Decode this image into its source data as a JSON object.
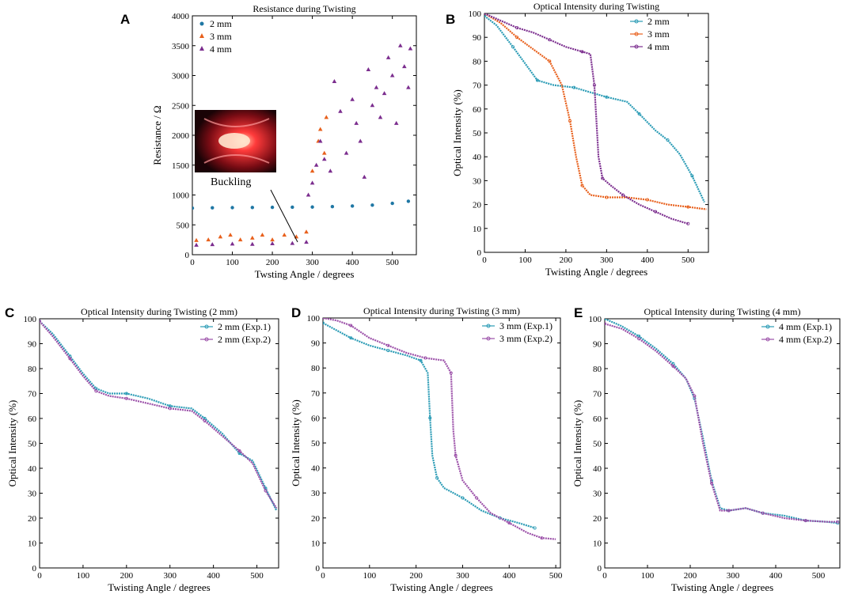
{
  "chart_data": [
    {
      "panel": "A",
      "type": "scatter",
      "title": "Resistance during Twisting",
      "xlabel": "Twsting Angle / degrees",
      "ylabel": "Resistance / Ω",
      "xlim": [
        0,
        560
      ],
      "ylim": [
        0,
        4000
      ],
      "xticks": [
        0,
        100,
        200,
        300,
        400,
        500
      ],
      "yticks": [
        0,
        500,
        1000,
        1500,
        2000,
        2500,
        3000,
        3500,
        4000
      ],
      "legend_position": "top-left",
      "annotation": "Buckling",
      "inset_image": "red-glowing-fiber-photo",
      "series": [
        {
          "name": "2 mm",
          "marker": "circle",
          "color": "#1f77a4",
          "points": [
            [
              0,
              780
            ],
            [
              50,
              785
            ],
            [
              100,
              788
            ],
            [
              150,
              790
            ],
            [
              200,
              793
            ],
            [
              250,
              795
            ],
            [
              300,
              798
            ],
            [
              350,
              805
            ],
            [
              400,
              815
            ],
            [
              450,
              830
            ],
            [
              500,
              860
            ],
            [
              540,
              895
            ]
          ]
        },
        {
          "name": "3 mm",
          "marker": "triangle",
          "color": "#e8601c",
          "points": [
            [
              10,
              240
            ],
            [
              40,
              250
            ],
            [
              70,
              300
            ],
            [
              95,
              330
            ],
            [
              120,
              250
            ],
            [
              150,
              280
            ],
            [
              175,
              330
            ],
            [
              200,
              250
            ],
            [
              230,
              330
            ],
            [
              260,
              300
            ],
            [
              285,
              380
            ],
            [
              300,
              1400
            ],
            [
              315,
              1900
            ],
            [
              320,
              2100
            ],
            [
              330,
              1700
            ],
            [
              335,
              2300
            ]
          ]
        },
        {
          "name": "4 mm",
          "marker": "triangle",
          "color": "#7b2d8e",
          "points": [
            [
              10,
              160
            ],
            [
              50,
              170
            ],
            [
              100,
              180
            ],
            [
              150,
              175
            ],
            [
              200,
              185
            ],
            [
              250,
              190
            ],
            [
              285,
              210
            ],
            [
              290,
              1000
            ],
            [
              300,
              1200
            ],
            [
              310,
              1500
            ],
            [
              320,
              1900
            ],
            [
              330,
              1600
            ],
            [
              345,
              1400
            ],
            [
              355,
              2900
            ],
            [
              370,
              2400
            ],
            [
              385,
              1700
            ],
            [
              400,
              2600
            ],
            [
              410,
              2200
            ],
            [
              420,
              1900
            ],
            [
              430,
              1300
            ],
            [
              440,
              3100
            ],
            [
              450,
              2500
            ],
            [
              460,
              2800
            ],
            [
              470,
              2300
            ],
            [
              480,
              2700
            ],
            [
              490,
              3300
            ],
            [
              500,
              3000
            ],
            [
              510,
              2200
            ],
            [
              520,
              3500
            ],
            [
              530,
              3150
            ],
            [
              540,
              2800
            ],
            [
              545,
              3450
            ]
          ]
        }
      ]
    },
    {
      "panel": "B",
      "type": "line",
      "title": "Optical Intensity during Twisting",
      "xlabel": "Twisting Angle / degrees",
      "ylabel": "Optical Intensity (%)",
      "xlim": [
        0,
        550
      ],
      "ylim": [
        0,
        100
      ],
      "xticks": [
        0,
        100,
        200,
        300,
        400,
        500
      ],
      "yticks": [
        0,
        10,
        20,
        30,
        40,
        50,
        60,
        70,
        80,
        90,
        100
      ],
      "legend_position": "top-right",
      "series": [
        {
          "name": "2 mm",
          "color": "#2a9bb5",
          "points": [
            [
              0,
              99
            ],
            [
              30,
              95
            ],
            [
              70,
              86
            ],
            [
              100,
              79
            ],
            [
              130,
              72
            ],
            [
              170,
              70
            ],
            [
              220,
              69
            ],
            [
              260,
              67
            ],
            [
              300,
              65
            ],
            [
              350,
              63
            ],
            [
              380,
              58
            ],
            [
              420,
              51
            ],
            [
              450,
              47
            ],
            [
              480,
              41
            ],
            [
              510,
              32
            ],
            [
              540,
              21
            ]
          ]
        },
        {
          "name": "3 mm",
          "color": "#e8601c",
          "points": [
            [
              0,
              100
            ],
            [
              40,
              96
            ],
            [
              80,
              90
            ],
            [
              120,
              85
            ],
            [
              160,
              80
            ],
            [
              190,
              70
            ],
            [
              210,
              55
            ],
            [
              225,
              40
            ],
            [
              240,
              28
            ],
            [
              260,
              24
            ],
            [
              300,
              23
            ],
            [
              350,
              23
            ],
            [
              400,
              22
            ],
            [
              450,
              20
            ],
            [
              500,
              19
            ],
            [
              545,
              18
            ]
          ]
        },
        {
          "name": "4 mm",
          "color": "#7b2d8e",
          "points": [
            [
              0,
              100
            ],
            [
              40,
              97
            ],
            [
              80,
              94
            ],
            [
              120,
              92
            ],
            [
              160,
              89
            ],
            [
              200,
              86
            ],
            [
              240,
              84
            ],
            [
              260,
              83
            ],
            [
              270,
              70
            ],
            [
              280,
              40
            ],
            [
              290,
              31
            ],
            [
              310,
              28
            ],
            [
              340,
              24
            ],
            [
              380,
              20
            ],
            [
              420,
              17
            ],
            [
              460,
              14
            ],
            [
              500,
              12
            ]
          ]
        }
      ]
    },
    {
      "panel": "C",
      "type": "line",
      "title": "Optical Intensity during Twisting (2 mm)",
      "xlabel": "Twisting Angle / degrees",
      "ylabel": "Optical Intensity (%)",
      "xlim": [
        0,
        550
      ],
      "ylim": [
        0,
        100
      ],
      "xticks": [
        0,
        100,
        200,
        300,
        400,
        500
      ],
      "yticks": [
        0,
        10,
        20,
        30,
        40,
        50,
        60,
        70,
        80,
        90,
        100
      ],
      "legend_position": "top-right",
      "series": [
        {
          "name": "2 mm (Exp.1)",
          "color": "#2a9bb5",
          "points": [
            [
              0,
              99
            ],
            [
              30,
              94
            ],
            [
              70,
              85
            ],
            [
              100,
              78
            ],
            [
              130,
              72
            ],
            [
              160,
              70
            ],
            [
              200,
              70
            ],
            [
              250,
              68
            ],
            [
              300,
              65
            ],
            [
              350,
              64
            ],
            [
              380,
              60
            ],
            [
              420,
              54
            ],
            [
              460,
              46
            ],
            [
              490,
              43
            ],
            [
              520,
              32
            ],
            [
              545,
              23
            ]
          ]
        },
        {
          "name": "2 mm (Exp.2)",
          "color": "#9b4fa8",
          "points": [
            [
              0,
              99
            ],
            [
              30,
              93
            ],
            [
              70,
              84
            ],
            [
              100,
              77
            ],
            [
              130,
              71
            ],
            [
              160,
              69
            ],
            [
              200,
              68
            ],
            [
              250,
              66
            ],
            [
              300,
              64
            ],
            [
              350,
              63
            ],
            [
              380,
              59
            ],
            [
              420,
              53
            ],
            [
              460,
              47
            ],
            [
              490,
              42
            ],
            [
              520,
              31
            ],
            [
              545,
              24
            ]
          ]
        }
      ]
    },
    {
      "panel": "D",
      "type": "line",
      "title": "Optical Intensity during Twisting (3 mm)",
      "xlabel": "Twisting Angle / degrees",
      "ylabel": "Optical Intensity (%)",
      "xlim": [
        0,
        510
      ],
      "ylim": [
        0,
        100
      ],
      "xticks": [
        0,
        100,
        200,
        300,
        400,
        500
      ],
      "yticks": [
        0,
        10,
        20,
        30,
        40,
        50,
        60,
        70,
        80,
        90,
        100
      ],
      "legend_position": "top-right",
      "series": [
        {
          "name": "3 mm (Exp.1)",
          "color": "#2a9bb5",
          "points": [
            [
              0,
              98
            ],
            [
              30,
              95
            ],
            [
              60,
              92
            ],
            [
              100,
              89
            ],
            [
              140,
              87
            ],
            [
              180,
              85
            ],
            [
              210,
              83
            ],
            [
              225,
              78
            ],
            [
              230,
              60
            ],
            [
              235,
              45
            ],
            [
              245,
              36
            ],
            [
              260,
              32
            ],
            [
              300,
              28
            ],
            [
              340,
              23
            ],
            [
              380,
              20
            ],
            [
              420,
              18
            ],
            [
              455,
              16
            ]
          ]
        },
        {
          "name": "3 mm (Exp.2)",
          "color": "#9b4fa8",
          "points": [
            [
              0,
              100
            ],
            [
              30,
              99
            ],
            [
              60,
              97
            ],
            [
              100,
              92
            ],
            [
              140,
              89
            ],
            [
              180,
              86
            ],
            [
              220,
              84
            ],
            [
              260,
              83
            ],
            [
              275,
              78
            ],
            [
              280,
              55
            ],
            [
              285,
              45
            ],
            [
              300,
              35
            ],
            [
              330,
              28
            ],
            [
              360,
              22
            ],
            [
              400,
              18
            ],
            [
              440,
              14
            ],
            [
              470,
              12
            ],
            [
              500,
              11.5
            ]
          ]
        }
      ]
    },
    {
      "panel": "E",
      "type": "line",
      "title": "Optical Intensity during Twisting (4 mm)",
      "xlabel": "Twisting Angle / degrees",
      "ylabel": "Optical Intensity (%)",
      "xlim": [
        0,
        550
      ],
      "ylim": [
        0,
        100
      ],
      "xticks": [
        0,
        100,
        200,
        300,
        400,
        500
      ],
      "yticks": [
        0,
        10,
        20,
        30,
        40,
        50,
        60,
        70,
        80,
        90,
        100
      ],
      "legend_position": "top-right",
      "series": [
        {
          "name": "4 mm (Exp.1)",
          "color": "#2a9bb5",
          "points": [
            [
              0,
              100
            ],
            [
              40,
              97
            ],
            [
              80,
              93
            ],
            [
              120,
              88
            ],
            [
              160,
              82
            ],
            [
              190,
              76
            ],
            [
              210,
              68
            ],
            [
              230,
              52
            ],
            [
              250,
              35
            ],
            [
              270,
              24
            ],
            [
              290,
              23
            ],
            [
              330,
              24
            ],
            [
              370,
              22
            ],
            [
              420,
              21
            ],
            [
              470,
              19
            ],
            [
              520,
              18.5
            ],
            [
              545,
              18
            ]
          ]
        },
        {
          "name": "4 mm (Exp.2)",
          "color": "#9b4fa8",
          "points": [
            [
              0,
              98
            ],
            [
              40,
              96
            ],
            [
              80,
              92
            ],
            [
              120,
              87
            ],
            [
              160,
              81
            ],
            [
              190,
              76
            ],
            [
              210,
              69
            ],
            [
              230,
              50
            ],
            [
              250,
              34
            ],
            [
              270,
              23
            ],
            [
              290,
              23
            ],
            [
              330,
              24
            ],
            [
              370,
              22
            ],
            [
              420,
              20
            ],
            [
              470,
              19
            ],
            [
              520,
              18.5
            ],
            [
              545,
              18.5
            ]
          ]
        }
      ]
    }
  ]
}
